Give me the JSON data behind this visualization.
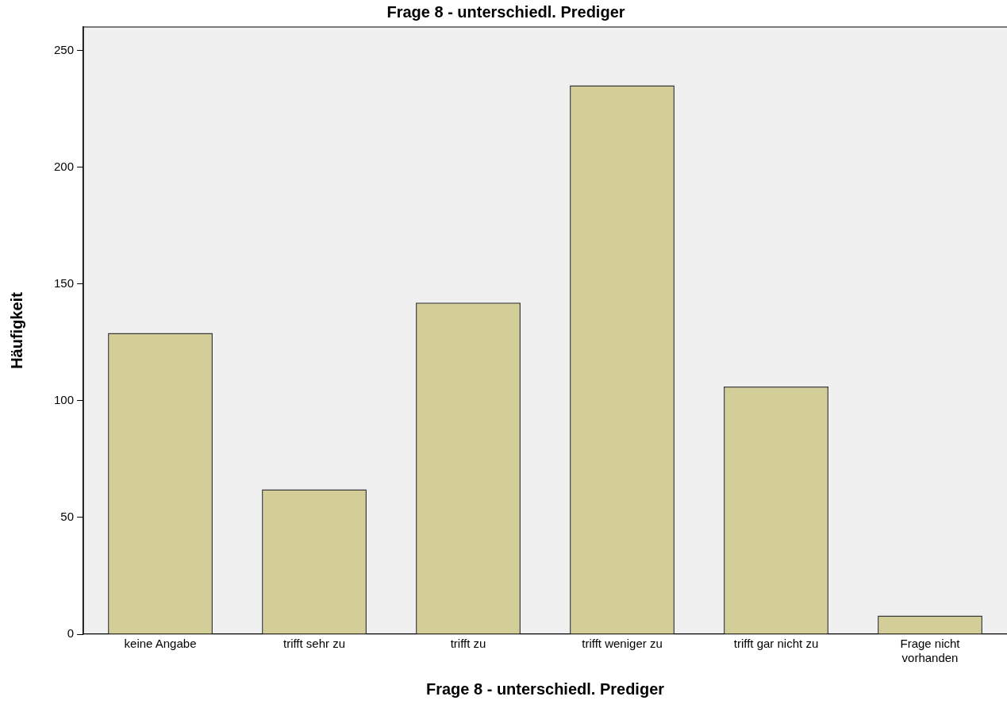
{
  "chart_data": {
    "type": "bar",
    "title": "Frage 8 - unterschiedl. Prediger",
    "xlabel": "Frage 8 - unterschiedl. Prediger",
    "ylabel": "Häufigkeit",
    "categories": [
      "keine Angabe",
      "trifft sehr zu",
      "trifft zu",
      "trifft weniger zu",
      "trifft gar nicht zu",
      "Frage nicht vorhanden"
    ],
    "values": [
      129,
      62,
      142,
      235,
      106,
      8
    ],
    "color": "#d3ce97",
    "ylim": [
      0,
      260
    ],
    "yticks": [
      0,
      50,
      100,
      150,
      200,
      250
    ],
    "grid": false,
    "legend": false
  }
}
